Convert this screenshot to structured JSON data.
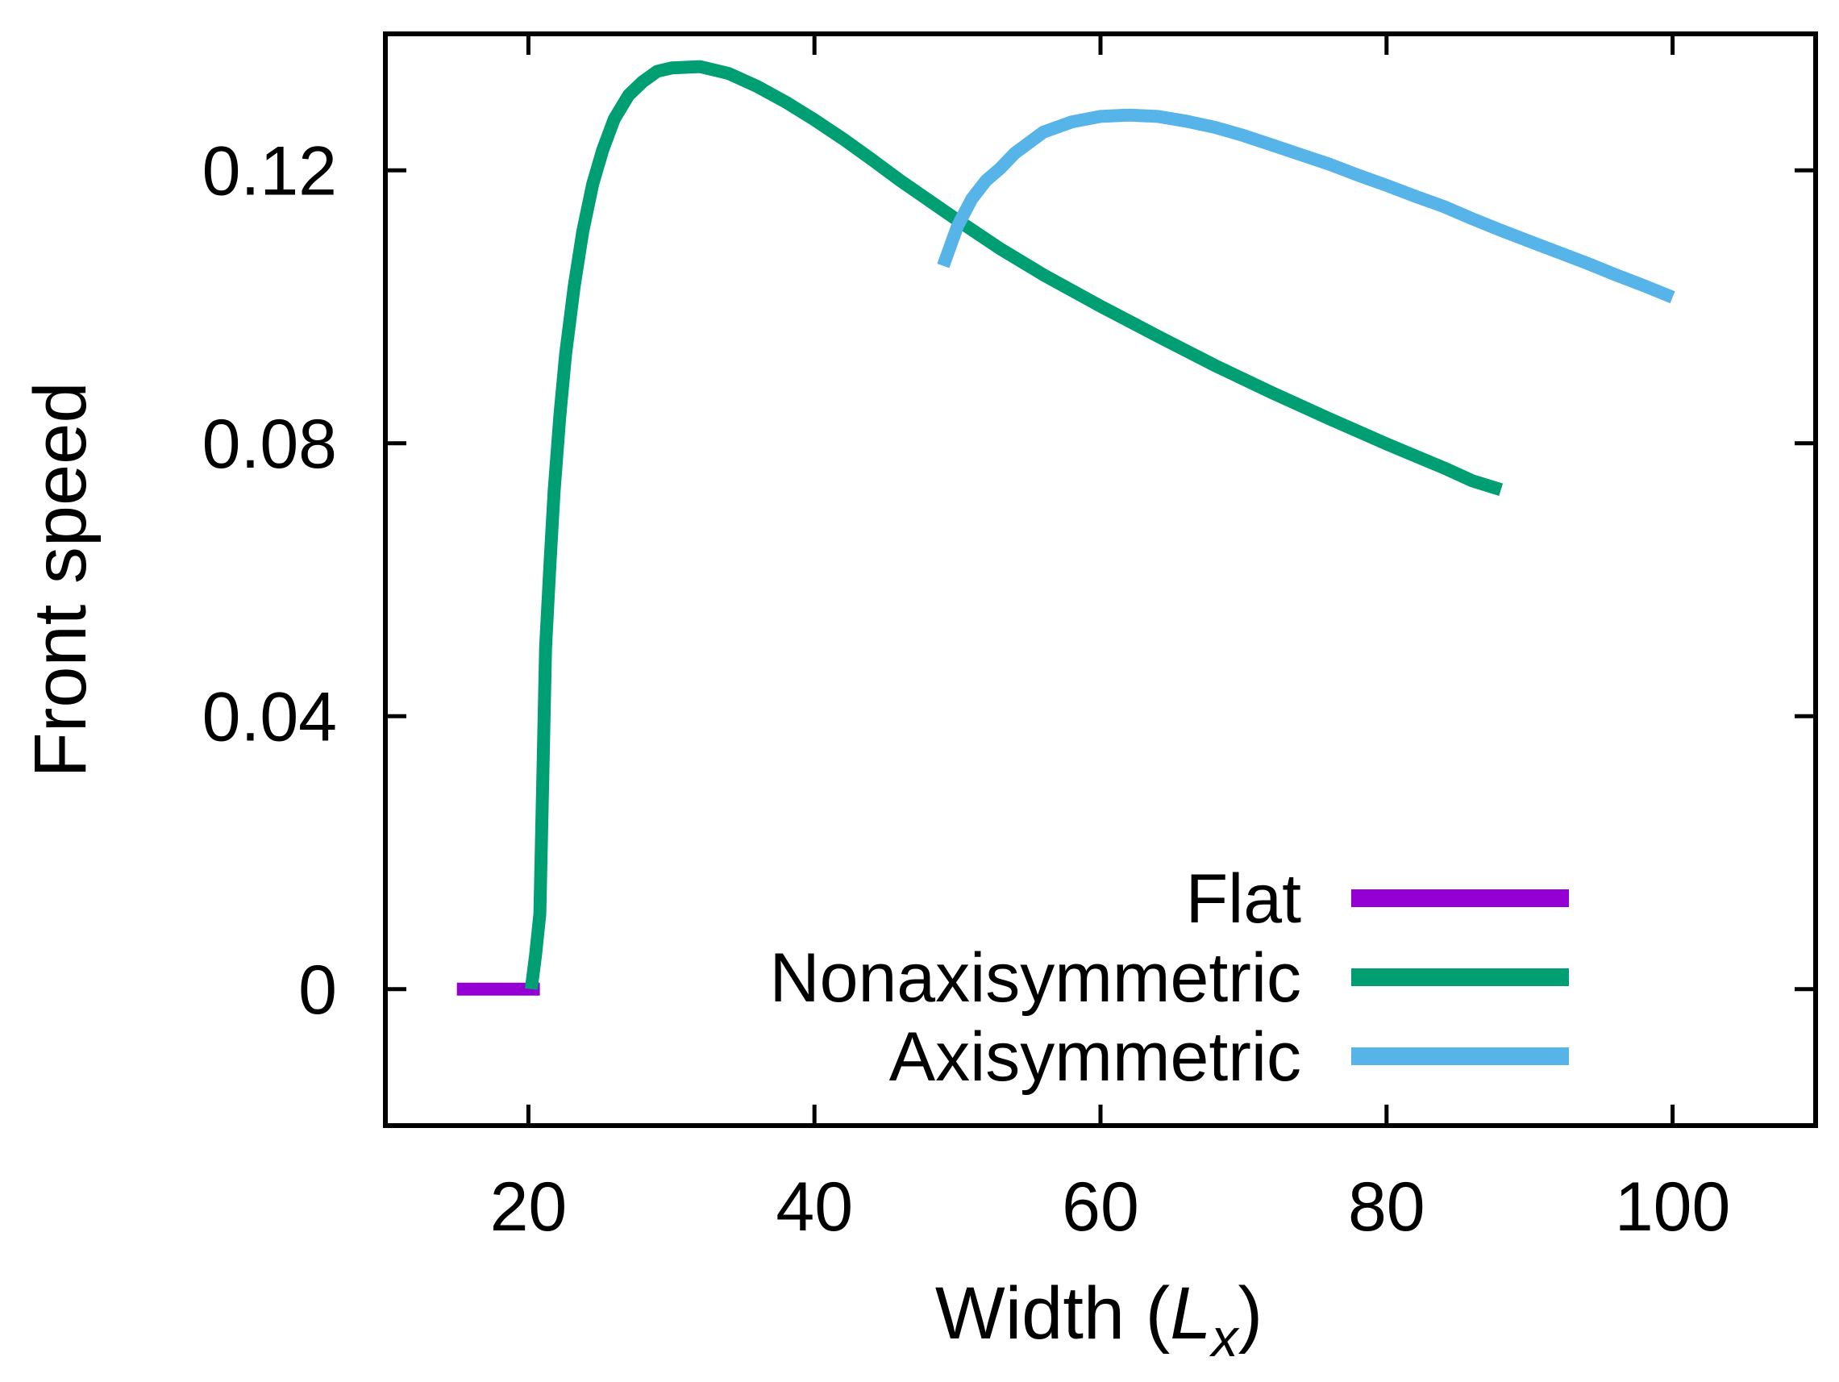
{
  "chart_data": {
    "type": "line",
    "title": "",
    "xlabel": "Width (",
    "xlabel_var": "L",
    "xlabel_sub": "x",
    "xlabel_close": ")",
    "ylabel": "Front speed",
    "xlim": [
      10,
      110
    ],
    "ylim": [
      -0.02,
      0.14
    ],
    "xticks": [
      20,
      40,
      60,
      80,
      100
    ],
    "yticks": [
      0,
      0.04,
      0.08,
      0.12
    ],
    "xtick_labels": [
      "20",
      "40",
      "60",
      "80",
      "100"
    ],
    "ytick_labels": [
      "0",
      "0.04",
      "0.08",
      "0.12"
    ],
    "grid": false,
    "legend_position": "bottom-right",
    "series": [
      {
        "name": "Flat",
        "color": "#9400d3",
        "x": [
          15,
          20.8
        ],
        "y": [
          0,
          0
        ]
      },
      {
        "name": "Nonaxisymmetric",
        "color": "#009e73",
        "x": [
          20.2,
          20.5,
          20.8,
          21.0,
          21.2,
          21.5,
          21.8,
          22.2,
          22.6,
          23.2,
          23.8,
          24.5,
          25.2,
          26.0,
          27.0,
          28.0,
          29.0,
          30.0,
          32.0,
          34.0,
          36.0,
          38.0,
          40.0,
          42.0,
          44.0,
          46.0,
          48.0,
          50.0,
          53.0,
          56.0,
          60.0,
          64.0,
          68.0,
          72.0,
          76.0,
          80.0,
          84.0,
          86.0,
          88.0
        ],
        "y": [
          0.0,
          0.005,
          0.011,
          0.03,
          0.05,
          0.062,
          0.073,
          0.084,
          0.093,
          0.103,
          0.111,
          0.118,
          0.123,
          0.1275,
          0.131,
          0.133,
          0.1345,
          0.135,
          0.1352,
          0.1342,
          0.1323,
          0.13,
          0.1274,
          0.1246,
          0.1216,
          0.1185,
          0.1156,
          0.1127,
          0.1085,
          0.1047,
          0.1001,
          0.0957,
          0.0914,
          0.0874,
          0.0836,
          0.0799,
          0.0764,
          0.0745,
          0.0732
        ]
      },
      {
        "name": "Axisymmetric",
        "color": "#56b4e9",
        "x": [
          49,
          50,
          51,
          52,
          53,
          54,
          56,
          58,
          60,
          62,
          64,
          66,
          68,
          70,
          72,
          74,
          76,
          78,
          80,
          82,
          84,
          86,
          88,
          90,
          92,
          94,
          96,
          98,
          100
        ],
        "y": [
          0.106,
          0.1118,
          0.1158,
          0.1185,
          0.1203,
          0.1225,
          0.1256,
          0.1271,
          0.1279,
          0.1281,
          0.1279,
          0.1272,
          0.1263,
          0.1251,
          0.1237,
          0.1223,
          0.1209,
          0.1193,
          0.1178,
          0.1162,
          0.1147,
          0.1129,
          0.1112,
          0.1096,
          0.108,
          0.1064,
          0.1047,
          0.1031,
          0.1014
        ]
      }
    ]
  }
}
